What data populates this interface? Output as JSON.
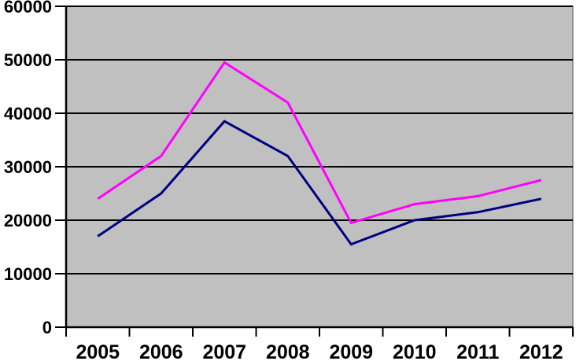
{
  "chart_data": {
    "type": "line",
    "title": "",
    "xlabel": "",
    "ylabel": "",
    "categories": [
      "2005",
      "2006",
      "2007",
      "2008",
      "2009",
      "2010",
      "2011",
      "2012"
    ],
    "series": [
      {
        "name": "navy-series",
        "color": "#000080",
        "values": [
          17000,
          25000,
          38500,
          32000,
          15500,
          20000,
          21500,
          24000
        ]
      },
      {
        "name": "magenta-series",
        "color": "#FF00FF",
        "values": [
          24000,
          32000,
          49500,
          42000,
          19500,
          23000,
          24500,
          27500
        ]
      }
    ],
    "ylim": [
      0,
      60000
    ],
    "ytick_step": 10000,
    "ytick_labels": [
      "0",
      "10000",
      "20000",
      "30000",
      "40000",
      "50000",
      "60000"
    ],
    "grid": true,
    "legend_position": "none",
    "colors": {
      "plot_background": "#C0C0C0",
      "page_background": "#FFFFFF",
      "gridline": "#000000",
      "axis": "#000000",
      "plot_right_border": "#808080",
      "tick_label": "#000000"
    }
  }
}
